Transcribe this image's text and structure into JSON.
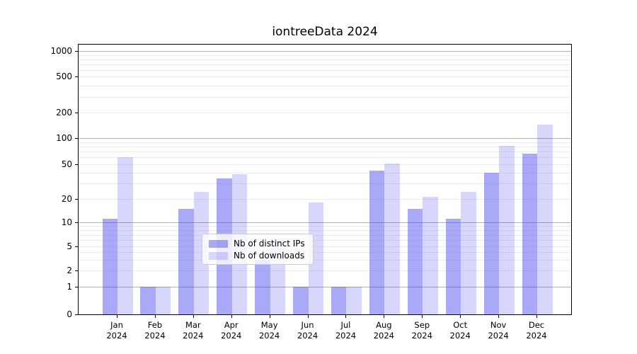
{
  "title": "iontreeData 2024",
  "colors": {
    "ips_bar": "rgba(68,68,238,0.46)",
    "downloads_bar": "rgba(68,68,238,0.21)",
    "major_grid": "#b0b0b0",
    "minor_grid": "#ececec",
    "spine": "#000000",
    "legend_border": "#cccccc"
  },
  "legend": {
    "items": [
      {
        "label": "Nb of distinct IPs",
        "series": "ips"
      },
      {
        "label": "Nb of downloads",
        "series": "downloads"
      }
    ]
  },
  "chart_data": {
    "type": "bar",
    "title": "iontreeData 2024",
    "categories": [
      "Jan 2024",
      "Feb 2024",
      "Mar 2024",
      "Apr 2024",
      "May 2024",
      "Jun 2024",
      "Jul 2024",
      "Aug 2024",
      "Sep 2024",
      "Oct 2024",
      "Nov 2024",
      "Dec 2024"
    ],
    "series": [
      {
        "name": "Nb of distinct IPs",
        "values": [
          11,
          1,
          15,
          34,
          3,
          1,
          1,
          42,
          15,
          11,
          40,
          66
        ]
      },
      {
        "name": "Nb of downloads",
        "values": [
          60,
          1,
          24,
          38,
          6,
          18,
          1,
          51,
          21,
          24,
          82,
          145
        ]
      }
    ],
    "yscale": "symlog",
    "yticks": [
      0,
      1,
      2,
      5,
      10,
      20,
      50,
      100,
      200,
      500,
      1000
    ],
    "ylim": [
      0,
      1400
    ],
    "xlabel": "",
    "ylabel": "",
    "grid": true,
    "legend_position": "lower-center-inside"
  }
}
